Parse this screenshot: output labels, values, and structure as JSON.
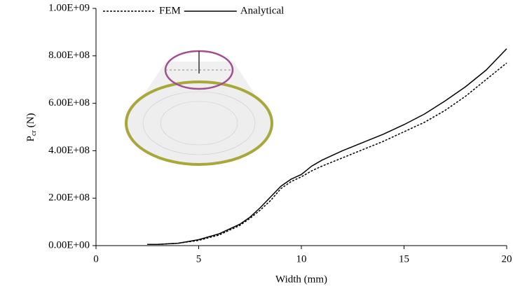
{
  "chart_data": {
    "type": "line",
    "x_label": "Width (mm)",
    "y_label": {
      "base": "P",
      "subscript": "cr",
      "unit": "(N)"
    },
    "xlim": [
      0,
      20
    ],
    "xticks": [
      0,
      5,
      10,
      15,
      20
    ],
    "ylim": [
      0,
      1000000000
    ],
    "yticks": [
      {
        "value": 0,
        "label": "0.00E+00"
      },
      {
        "value": 200000000,
        "label": "2.00E+08"
      },
      {
        "value": 400000000,
        "label": "4.00E+08"
      },
      {
        "value": 600000000,
        "label": "6.00E+08"
      },
      {
        "value": 800000000,
        "label": "8.00E+08"
      },
      {
        "value": 1000000000,
        "label": "1.00E+09"
      }
    ],
    "x": [
      2.5,
      3,
      4,
      5,
      6,
      7,
      7.5,
      8,
      8.5,
      9,
      9.5,
      10,
      10.5,
      11,
      12,
      13,
      14,
      15,
      16,
      17,
      18,
      19,
      20
    ],
    "series": [
      {
        "name": "FEM",
        "color": "#000000",
        "dash": true,
        "values": [
          5000000,
          5000000,
          10000000,
          22000000,
          45000000,
          85000000,
          115000000,
          150000000,
          190000000,
          240000000,
          270000000,
          290000000,
          315000000,
          335000000,
          370000000,
          405000000,
          440000000,
          480000000,
          520000000,
          570000000,
          630000000,
          700000000,
          770000000
        ]
      },
      {
        "name": "Analytical",
        "color": "#000000",
        "dash": false,
        "values": [
          5000000,
          5000000,
          10000000,
          25000000,
          50000000,
          90000000,
          120000000,
          160000000,
          205000000,
          250000000,
          280000000,
          300000000,
          335000000,
          360000000,
          400000000,
          435000000,
          470000000,
          510000000,
          555000000,
          610000000,
          670000000,
          740000000,
          830000000
        ]
      }
    ]
  }
}
